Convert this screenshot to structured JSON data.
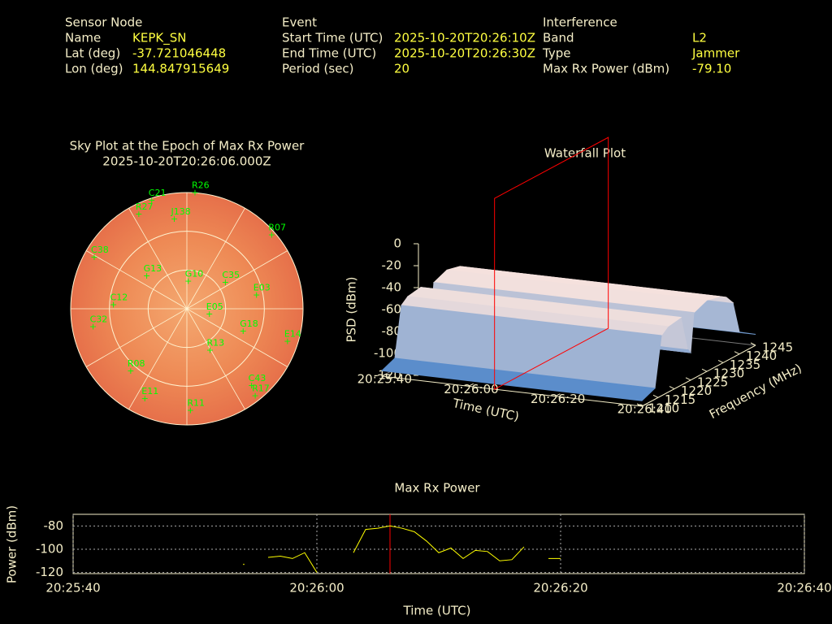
{
  "info": [
    {
      "heading": "Sensor Node",
      "rows": [
        [
          "Name",
          "KEPK_SN"
        ],
        [
          "Lat (deg)",
          "-37.721046448"
        ],
        [
          "Lon (deg)",
          "144.847915649"
        ]
      ]
    },
    {
      "heading": "Event",
      "rows": [
        [
          "Start Time (UTC)",
          "2025-10-20T20:26:10Z"
        ],
        [
          "End Time (UTC)",
          "2025-10-20T20:26:30Z"
        ],
        [
          "Period (sec)",
          "20"
        ]
      ]
    },
    {
      "heading": "Interference",
      "rows": [
        [
          "Band",
          "L2"
        ],
        [
          "Type",
          "Jammer"
        ],
        [
          "Max Rx Power (dBm)",
          "-79.10"
        ]
      ]
    }
  ],
  "chart_data": [
    {
      "type": "polar",
      "title": "Sky Plot at the Epoch of Max Rx Power",
      "subtitle": "2025-10-20T20:26:06.000Z",
      "labels": [
        "C21",
        "R26",
        "R27",
        "J138",
        "G13",
        "C35",
        "E05",
        "R17",
        "C43",
        "E11",
        "R08",
        "R11",
        "E14",
        "R07",
        "C12",
        "C38",
        "E03",
        "C32",
        "G10",
        "G18",
        "R13"
      ],
      "azimuth": [
        342,
        4,
        333,
        352,
        309,
        56,
        104,
        142,
        140,
        205,
        222,
        178,
        108,
        49,
        273,
        299,
        79,
        259,
        3,
        112,
        151
      ],
      "elevation": [
        2,
        0,
        8,
        20,
        50,
        54,
        72,
        4,
        12,
        13,
        25,
        11,
        8,
        3,
        33,
        8,
        35,
        16,
        69,
        43,
        53
      ],
      "rings": [
        0,
        30,
        60
      ],
      "spokes": [
        0,
        30,
        60,
        90,
        120,
        150,
        180,
        210,
        240,
        270,
        300,
        330
      ],
      "color": "#00ff00"
    },
    {
      "type": "surface",
      "title": "Waterfall Plot",
      "xlabel": "Time (UTC)",
      "ylabel": "Frequency (MHz)",
      "zlabel": "PSD (dBm)",
      "xlim": [
        73540,
        73600
      ],
      "xticks": [
        {
          "value": 73540,
          "label": "20:25:40"
        },
        {
          "value": 73560,
          "label": "20:26:00"
        },
        {
          "value": 73580,
          "label": "20:26:20"
        },
        {
          "value": 73600,
          "label": "20:26:40"
        }
      ],
      "ylim": [
        1210,
        1245
      ],
      "yticks": [
        1210,
        1215,
        1220,
        1225,
        1230,
        1235,
        1240,
        1245
      ],
      "zlim": [
        -120,
        0
      ],
      "zticks": [
        0,
        -20,
        -40,
        -60,
        -80,
        -100,
        -120
      ],
      "frequencies": [
        1210,
        1214,
        1216,
        1218,
        1222,
        1224,
        1225,
        1226,
        1230,
        1234,
        1236,
        1238,
        1240,
        1245
      ],
      "psd": [
        -115,
        -110,
        -65,
        -60,
        -58,
        -90,
        -95,
        -60,
        -55,
        -58,
        -62,
        -70,
        -100,
        -110
      ],
      "marker_x": 73566,
      "marker_color": "#ff0000"
    },
    {
      "type": "line",
      "title": "Max Rx Power",
      "xlabel": "Time (UTC)",
      "ylabel": "Power (dBm)",
      "x": [
        73554,
        73555,
        73556,
        73557,
        73558,
        73559,
        73560,
        73561,
        73562,
        73563,
        73564,
        73565,
        73566,
        73567,
        73568,
        73569,
        73570,
        73571,
        73572,
        73573,
        73574,
        73575,
        73576,
        73577,
        73578,
        73579,
        73580
      ],
      "values": [
        -113,
        null,
        -107,
        -106,
        -108,
        -103,
        -120,
        null,
        null,
        -103,
        -83,
        -82,
        -80,
        -82,
        -85,
        -93,
        -103,
        -99,
        -108,
        -101,
        -102,
        -110,
        -109,
        -98,
        null,
        -108,
        -108
      ],
      "xlim": [
        73540,
        73600
      ],
      "xticks": [
        {
          "value": 73540,
          "label": "20:25:40"
        },
        {
          "value": 73560,
          "label": "20:26:00"
        },
        {
          "value": 73580,
          "label": "20:26:20"
        },
        {
          "value": 73600,
          "label": "20:26:40"
        }
      ],
      "ylim": [
        -121,
        -70
      ],
      "yticks": [
        -80,
        -100,
        -120
      ],
      "color": "#ffff00",
      "marker_color": "#ff0000",
      "grid": true
    }
  ]
}
